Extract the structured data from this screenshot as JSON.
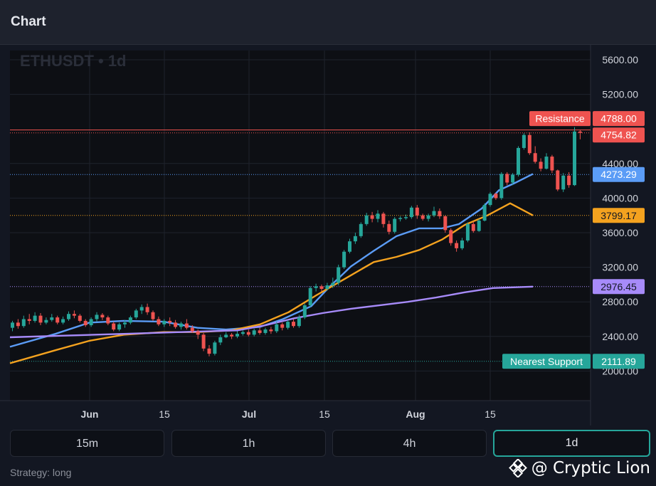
{
  "header": {
    "title": "Chart"
  },
  "chart": {
    "symbol_watermark": "ETHUSDT • 1d",
    "colors": {
      "up": "#26a69a",
      "down": "#ef5350",
      "sma_fast": "#5b9cf6",
      "sma_mid": "#f4a21f",
      "sma_slow": "#a78bfa",
      "resistance": "#ef5350",
      "support": "#26a69a"
    }
  },
  "chart_data": {
    "type": "candlestick",
    "symbol": "ETHUSDT",
    "interval": "1d",
    "y_ticks": [
      "5600.00",
      "5200.00",
      "4400.00",
      "4000.00",
      "3600.00",
      "3200.00",
      "2800.00",
      "2400.00",
      "2000.00"
    ],
    "x_ticks": [
      "Jun",
      "15",
      "Jul",
      "15",
      "Aug",
      "15"
    ],
    "ylim": [
      1800,
      5700
    ],
    "price_labels": {
      "resistance_level": "4788.00",
      "resistance_text": "Resistance",
      "last_price": "4754.82",
      "ma_fast": "4273.29",
      "ma_mid": "3799.17",
      "ma_slow": "2976.45",
      "support_level": "2111.89",
      "support_text": "Nearest Support"
    },
    "levels": {
      "resistance": 4788.0,
      "support": 2111.89
    },
    "series": [
      {
        "name": "ma_fast",
        "color": "#5b9cf6",
        "points": [
          [
            0,
            2280
          ],
          [
            8,
            2430
          ],
          [
            14,
            2560
          ],
          [
            20,
            2580
          ],
          [
            27,
            2570
          ],
          [
            33,
            2500
          ],
          [
            38,
            2480
          ],
          [
            44,
            2510
          ],
          [
            48,
            2600
          ],
          [
            53,
            2750
          ],
          [
            56,
            2960
          ],
          [
            60,
            3210
          ],
          [
            64,
            3390
          ],
          [
            68,
            3560
          ],
          [
            72,
            3650
          ],
          [
            76,
            3650
          ],
          [
            79,
            3700
          ],
          [
            83,
            3880
          ],
          [
            86,
            4090
          ],
          [
            89,
            4180
          ],
          [
            92,
            4280
          ]
        ]
      },
      {
        "name": "ma_mid",
        "color": "#f4a21f",
        "points": [
          [
            0,
            2090
          ],
          [
            8,
            2240
          ],
          [
            14,
            2350
          ],
          [
            20,
            2420
          ],
          [
            27,
            2450
          ],
          [
            33,
            2450
          ],
          [
            39,
            2470
          ],
          [
            44,
            2540
          ],
          [
            49,
            2680
          ],
          [
            54,
            2880
          ],
          [
            59,
            3070
          ],
          [
            64,
            3260
          ],
          [
            68,
            3320
          ],
          [
            72,
            3400
          ],
          [
            76,
            3520
          ],
          [
            80,
            3690
          ],
          [
            84,
            3800
          ],
          [
            88,
            3940
          ],
          [
            92,
            3800
          ]
        ]
      },
      {
        "name": "ma_slow",
        "color": "#a78bfa",
        "points": [
          [
            0,
            2390
          ],
          [
            10,
            2410
          ],
          [
            20,
            2430
          ],
          [
            30,
            2450
          ],
          [
            40,
            2470
          ],
          [
            45,
            2530
          ],
          [
            50,
            2610
          ],
          [
            55,
            2670
          ],
          [
            60,
            2720
          ],
          [
            65,
            2760
          ],
          [
            70,
            2800
          ],
          [
            75,
            2850
          ],
          [
            80,
            2910
          ],
          [
            85,
            2960
          ],
          [
            92,
            2976
          ]
        ]
      }
    ],
    "candles": [
      [
        2500,
        2560,
        2460,
        2580
      ],
      [
        2560,
        2520,
        2490,
        2600
      ],
      [
        2520,
        2600,
        2500,
        2640
      ],
      [
        2600,
        2580,
        2540,
        2660
      ],
      [
        2580,
        2640,
        2560,
        2680
      ],
      [
        2640,
        2560,
        2530,
        2670
      ],
      [
        2560,
        2590,
        2540,
        2620
      ],
      [
        2590,
        2620,
        2570,
        2660
      ],
      [
        2620,
        2560,
        2540,
        2640
      ],
      [
        2560,
        2600,
        2540,
        2630
      ],
      [
        2600,
        2660,
        2580,
        2690
      ],
      [
        2660,
        2640,
        2610,
        2700
      ],
      [
        2640,
        2580,
        2560,
        2660
      ],
      [
        2580,
        2530,
        2510,
        2600
      ],
      [
        2530,
        2600,
        2510,
        2620
      ],
      [
        2600,
        2650,
        2570,
        2680
      ],
      [
        2650,
        2620,
        2590,
        2670
      ],
      [
        2620,
        2550,
        2530,
        2640
      ],
      [
        2550,
        2480,
        2460,
        2570
      ],
      [
        2480,
        2540,
        2460,
        2560
      ],
      [
        2540,
        2560,
        2500,
        2590
      ],
      [
        2560,
        2620,
        2540,
        2640
      ],
      [
        2620,
        2700,
        2600,
        2720
      ],
      [
        2700,
        2740,
        2660,
        2770
      ],
      [
        2740,
        2680,
        2650,
        2780
      ],
      [
        2680,
        2600,
        2580,
        2700
      ],
      [
        2600,
        2540,
        2520,
        2630
      ],
      [
        2540,
        2580,
        2510,
        2600
      ],
      [
        2580,
        2560,
        2520,
        2620
      ],
      [
        2560,
        2510,
        2490,
        2590
      ],
      [
        2510,
        2550,
        2480,
        2570
      ],
      [
        2550,
        2500,
        2480,
        2600
      ],
      [
        2500,
        2460,
        2440,
        2530
      ],
      [
        2460,
        2420,
        2370,
        2480
      ],
      [
        2420,
        2260,
        2230,
        2440
      ],
      [
        2260,
        2200,
        2170,
        2300
      ],
      [
        2200,
        2330,
        2180,
        2350
      ],
      [
        2330,
        2390,
        2300,
        2420
      ],
      [
        2390,
        2420,
        2380,
        2450
      ],
      [
        2420,
        2400,
        2370,
        2440
      ],
      [
        2400,
        2430,
        2380,
        2460
      ],
      [
        2430,
        2450,
        2410,
        2470
      ],
      [
        2450,
        2420,
        2400,
        2480
      ],
      [
        2420,
        2470,
        2400,
        2490
      ],
      [
        2470,
        2440,
        2420,
        2500
      ],
      [
        2440,
        2480,
        2420,
        2500
      ],
      [
        2480,
        2460,
        2430,
        2510
      ],
      [
        2460,
        2540,
        2440,
        2570
      ],
      [
        2540,
        2500,
        2470,
        2560
      ],
      [
        2500,
        2570,
        2480,
        2590
      ],
      [
        2570,
        2520,
        2500,
        2600
      ],
      [
        2520,
        2620,
        2500,
        2650
      ],
      [
        2620,
        2760,
        2600,
        2780
      ],
      [
        2760,
        2960,
        2740,
        2980
      ],
      [
        2960,
        2980,
        2920,
        3010
      ],
      [
        2980,
        2950,
        2920,
        3000
      ],
      [
        2950,
        2990,
        2930,
        3020
      ],
      [
        2990,
        3020,
        2960,
        3080
      ],
      [
        3020,
        3200,
        2990,
        3230
      ],
      [
        3200,
        3380,
        3180,
        3400
      ],
      [
        3380,
        3500,
        3360,
        3530
      ],
      [
        3500,
        3560,
        3470,
        3600
      ],
      [
        3560,
        3700,
        3540,
        3720
      ],
      [
        3700,
        3800,
        3680,
        3830
      ],
      [
        3800,
        3760,
        3720,
        3840
      ],
      [
        3760,
        3820,
        3720,
        3860
      ],
      [
        3820,
        3700,
        3660,
        3840
      ],
      [
        3700,
        3610,
        3580,
        3740
      ],
      [
        3610,
        3760,
        3590,
        3780
      ],
      [
        3760,
        3770,
        3730,
        3790
      ],
      [
        3770,
        3780,
        3750,
        3810
      ],
      [
        3780,
        3890,
        3760,
        3910
      ],
      [
        3890,
        3800,
        3760,
        3920
      ],
      [
        3800,
        3760,
        3740,
        3820
      ],
      [
        3760,
        3800,
        3730,
        3820
      ],
      [
        3800,
        3850,
        3780,
        3900
      ],
      [
        3850,
        3790,
        3760,
        3880
      ],
      [
        3790,
        3630,
        3600,
        3800
      ],
      [
        3630,
        3480,
        3450,
        3650
      ],
      [
        3480,
        3420,
        3380,
        3510
      ],
      [
        3420,
        3510,
        3400,
        3540
      ],
      [
        3510,
        3700,
        3490,
        3720
      ],
      [
        3700,
        3620,
        3600,
        3730
      ],
      [
        3620,
        3740,
        3610,
        3760
      ],
      [
        3740,
        3920,
        3730,
        3940
      ],
      [
        3920,
        4050,
        3900,
        4070
      ],
      [
        4050,
        4000,
        3980,
        4060
      ],
      [
        4000,
        4280,
        3980,
        4300
      ],
      [
        4280,
        4180,
        4150,
        4300
      ],
      [
        4180,
        4270,
        4150,
        4290
      ],
      [
        4270,
        4580,
        4250,
        4600
      ],
      [
        4580,
        4730,
        4560,
        4750
      ],
      [
        4730,
        4520,
        4500,
        4760
      ],
      [
        4520,
        4420,
        4400,
        4600
      ],
      [
        4420,
        4340,
        4310,
        4460
      ],
      [
        4340,
        4480,
        4330,
        4520
      ],
      [
        4480,
        4320,
        4290,
        4500
      ],
      [
        4320,
        4100,
        4080,
        4330
      ],
      [
        4100,
        4260,
        4070,
        4290
      ],
      [
        4260,
        4150,
        4120,
        4300
      ],
      [
        4150,
        4770,
        4140,
        4820
      ],
      [
        4770,
        4755,
        4680,
        4790
      ]
    ]
  },
  "timeframes": [
    {
      "label": "15m",
      "active": false
    },
    {
      "label": "1h",
      "active": false
    },
    {
      "label": "4h",
      "active": false
    },
    {
      "label": "1d",
      "active": true
    }
  ],
  "footer": {
    "strategy": "Strategy: long",
    "brand": "@ Cryptic Lion"
  }
}
